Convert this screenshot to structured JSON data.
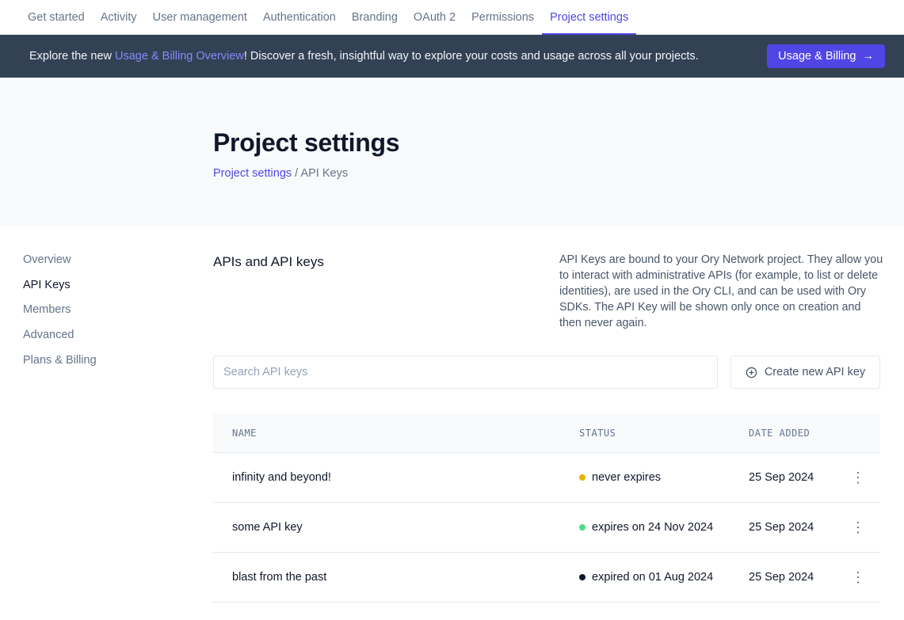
{
  "nav": {
    "tabs": [
      {
        "label": "Get started"
      },
      {
        "label": "Activity"
      },
      {
        "label": "User management"
      },
      {
        "label": "Authentication"
      },
      {
        "label": "Branding"
      },
      {
        "label": "OAuth 2"
      },
      {
        "label": "Permissions"
      },
      {
        "label": "Project settings",
        "active": true
      }
    ]
  },
  "banner": {
    "prefix": "Explore the new ",
    "link": "Usage & Billing Overview",
    "suffix": "! Discover a fresh, insightful way to explore your costs and usage across all your projects.",
    "button": "Usage & Billing"
  },
  "hero": {
    "title": "Project settings",
    "breadcrumb_link": "Project settings",
    "breadcrumb_sep": " / ",
    "breadcrumb_current": "API Keys"
  },
  "sidebar": {
    "items": [
      {
        "label": "Overview"
      },
      {
        "label": "API Keys",
        "active": true
      },
      {
        "label": "Members"
      },
      {
        "label": "Advanced"
      },
      {
        "label": "Plans & Billing"
      }
    ]
  },
  "main": {
    "title": "APIs and API keys",
    "description": "API Keys are bound to your Ory Network project. They allow you to interact with administrative APIs (for example, to list or delete identities), are used in the Ory CLI, and can be used with Ory SDKs. The API Key will be shown only once on creation and then never again.",
    "search_placeholder": "Search API keys",
    "create_button": "Create new API key"
  },
  "table": {
    "headers": [
      "NAME",
      "STATUS",
      "DATE ADDED"
    ],
    "rows": [
      {
        "name": "infinity and beyond!",
        "status": "never expires",
        "status_color": "#eab308",
        "date": "25 Sep 2024"
      },
      {
        "name": "some API key",
        "status": "expires on 24 Nov 2024",
        "status_color": "#4ade80",
        "date": "25 Sep 2024"
      },
      {
        "name": "blast from the past",
        "status": "expired on 01 Aug 2024",
        "status_color": "#0f172a",
        "date": "25 Sep 2024"
      }
    ]
  }
}
